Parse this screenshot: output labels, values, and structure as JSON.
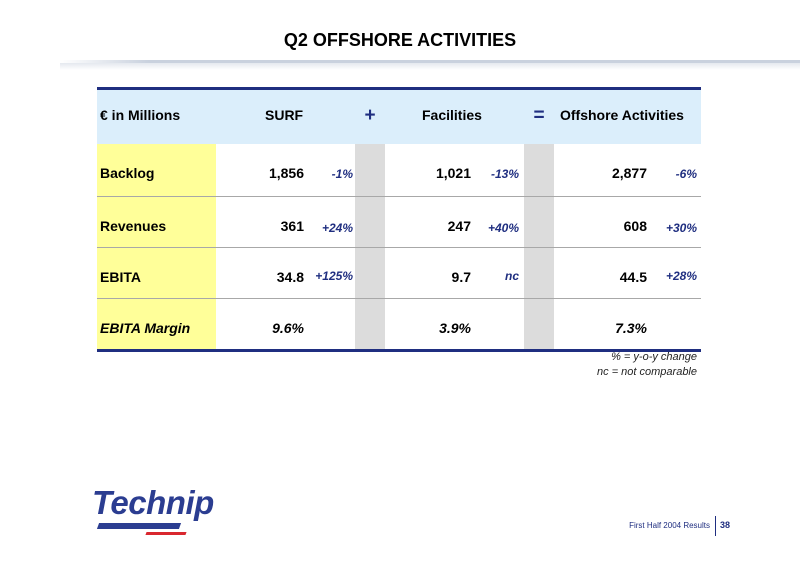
{
  "title": "Q2 OFFSHORE ACTIVITIES",
  "table": {
    "header": {
      "label": "€ in Millions",
      "col1": "SURF",
      "op1": "+",
      "col2": "Facilities",
      "op2": "=",
      "col3": "Offshore Activities"
    },
    "rows": [
      {
        "label": "Backlog",
        "surf": "1,856",
        "surf_chg": "-1%",
        "fac": "1,021",
        "fac_chg": "-13%",
        "off": "2,877",
        "off_chg": "-6%"
      },
      {
        "label": "Revenues",
        "surf": "361",
        "surf_chg": "+24%",
        "fac": "247",
        "fac_chg": "+40%",
        "off": "608",
        "off_chg": "+30%"
      },
      {
        "label": "EBITA",
        "surf": "34.8",
        "surf_chg": "+125%",
        "fac": "9.7",
        "fac_chg": "nc",
        "off": "44.5",
        "off_chg": "+28%"
      },
      {
        "label": "EBITA Margin",
        "surf": "9.6%",
        "surf_chg": "",
        "fac": "3.9%",
        "fac_chg": "",
        "off": "7.3%",
        "off_chg": ""
      }
    ]
  },
  "notes": {
    "line1": "% = y-o-y change",
    "line2": "nc = not comparable"
  },
  "logo": "Technip",
  "footer": {
    "text": "First Half 2004 Results",
    "page": "38"
  },
  "colors": {
    "navy": "#1f2e80",
    "header_band": "#dbeefb",
    "label_col": "#ffff99",
    "op_col": "#dcdcdc"
  }
}
